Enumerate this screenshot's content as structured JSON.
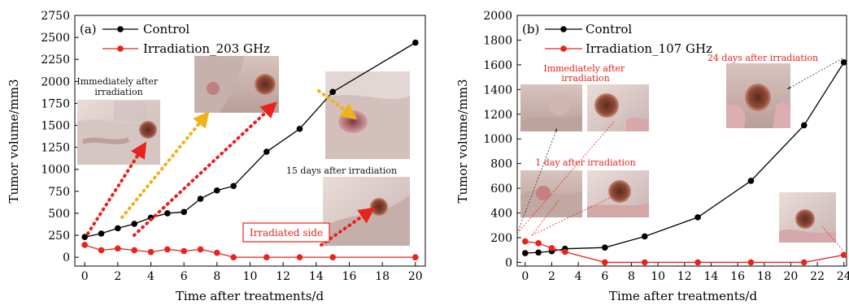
{
  "chart_data": [
    {
      "type": "line",
      "panel_label": "(a)",
      "xlabel": "Time after treatments/d",
      "ylabel": "Tumor volume/mm3",
      "xlim": [
        -0.6,
        20.6
      ],
      "ylim": [
        -100,
        2750
      ],
      "xticks": [
        0,
        2,
        4,
        6,
        8,
        10,
        12,
        14,
        16,
        18,
        20
      ],
      "yticks": [
        0,
        250,
        500,
        750,
        1000,
        1250,
        1500,
        1750,
        2000,
        2250,
        2500,
        2750
      ],
      "legend_position": "top-left",
      "series": [
        {
          "name": "Control",
          "color": "#000000",
          "x": [
            0,
            1,
            2,
            3,
            4,
            5,
            6,
            7,
            8,
            9,
            11,
            13,
            15,
            20
          ],
          "y": [
            230,
            270,
            330,
            380,
            450,
            500,
            515,
            665,
            760,
            810,
            1200,
            1460,
            1880,
            2440
          ]
        },
        {
          "name": "Irradiation_203 GHz",
          "color": "#e8221c",
          "x": [
            0,
            1,
            2,
            3,
            4,
            5,
            6,
            7,
            8,
            9,
            11,
            13,
            15,
            20
          ],
          "y": [
            140,
            80,
            100,
            80,
            60,
            90,
            70,
            90,
            50,
            0,
            0,
            0,
            0,
            0
          ]
        }
      ],
      "annotations": {
        "immediately": "Immediately after irradiation",
        "days15": "15 days after irradiation",
        "irradiated": "Irradiated side"
      }
    },
    {
      "type": "line",
      "panel_label": "(b)",
      "xlabel": "Time after treatments/d",
      "ylabel": "Tumor volume/mm3",
      "xlim": [
        -0.6,
        24.2
      ],
      "ylim": [
        -30,
        2000
      ],
      "xticks": [
        0,
        2,
        4,
        6,
        8,
        10,
        12,
        14,
        16,
        18,
        20,
        22,
        24
      ],
      "yticks": [
        0,
        200,
        400,
        600,
        800,
        1000,
        1200,
        1400,
        1600,
        1800,
        2000
      ],
      "legend_position": "top-left",
      "series": [
        {
          "name": "Control",
          "color": "#000000",
          "x": [
            0,
            1,
            2,
            3,
            6,
            9,
            13,
            17,
            21,
            24
          ],
          "y": [
            75,
            80,
            90,
            110,
            120,
            210,
            365,
            660,
            1110,
            1620
          ]
        },
        {
          "name": "Irradiation_107 GHz",
          "color": "#e8221c",
          "x": [
            0,
            1,
            2,
            3,
            6,
            9,
            13,
            17,
            21,
            24
          ],
          "y": [
            170,
            155,
            115,
            85,
            0,
            0,
            0,
            0,
            0,
            60
          ]
        }
      ],
      "annotations": {
        "immediately": "Immediately after irradiation",
        "day1": "1 day after irradiation",
        "days24": "24 days after irradiation"
      }
    }
  ],
  "colors": {
    "control": "#000000",
    "irradiation": "#e8221c",
    "arrow_red": "#e8221c",
    "arrow_yellow": "#f0b21a"
  }
}
